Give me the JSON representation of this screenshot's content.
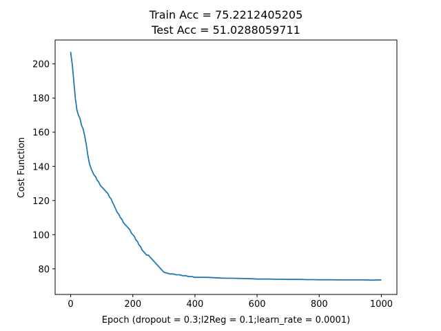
{
  "chart_data": {
    "type": "line",
    "title_lines": [
      "Train Acc = 75.2212405205",
      "Test Acc = 51.0288059711"
    ],
    "xlabel": "Epoch (dropout = 0.3;l2Reg = 0.1;learn_rate = 0.0001)",
    "ylabel": "Cost Function",
    "xlim": [
      -50,
      1050
    ],
    "ylim": [
      65,
      214
    ],
    "xticks": [
      0,
      200,
      400,
      600,
      800,
      1000
    ],
    "yticks": [
      80,
      100,
      120,
      140,
      160,
      180,
      200
    ],
    "grid": false,
    "line_color": "#1f77b4",
    "series": [
      {
        "x": [
          0,
          5,
          10,
          15,
          20,
          25,
          30,
          35,
          40,
          45,
          50,
          55,
          60,
          65,
          70,
          75,
          80,
          85,
          90,
          95,
          100,
          105,
          110,
          115,
          120,
          125,
          130,
          135,
          140,
          145,
          150,
          155,
          160,
          165,
          170,
          175,
          180,
          185,
          190,
          195,
          200,
          205,
          210,
          215,
          220,
          225,
          230,
          235,
          240,
          245,
          250,
          255,
          260,
          265,
          270,
          275,
          280,
          285,
          290,
          295,
          300,
          310,
          320,
          330,
          340,
          350,
          360,
          370,
          380,
          390,
          400,
          420,
          440,
          460,
          480,
          500,
          520,
          540,
          560,
          580,
          600,
          620,
          640,
          660,
          680,
          700,
          720,
          740,
          760,
          780,
          800,
          820,
          840,
          860,
          880,
          900,
          920,
          940,
          960,
          980,
          1000
        ],
        "values": [
          207,
          200,
          190,
          180,
          173,
          170,
          168,
          164,
          162,
          158,
          153,
          147,
          142,
          139,
          137,
          135,
          134,
          132,
          131,
          129,
          128,
          127,
          126,
          125,
          124,
          122,
          121,
          119,
          117,
          115,
          113,
          112,
          110,
          109,
          107,
          106,
          105,
          104,
          103,
          101,
          100,
          99,
          97,
          96,
          94,
          93,
          91,
          90,
          89,
          88,
          88,
          87,
          86,
          85,
          84,
          83,
          82,
          81,
          80,
          79,
          78,
          77.5,
          77,
          77,
          76.5,
          76.5,
          76,
          76,
          75.5,
          75.5,
          75,
          75,
          75,
          74.8,
          74.6,
          74.5,
          74.5,
          74.4,
          74.3,
          74.2,
          74,
          74,
          74,
          73.9,
          73.9,
          73.8,
          73.8,
          73.8,
          73.7,
          73.7,
          73.6,
          73.6,
          73.6,
          73.5,
          73.5,
          73.5,
          73.5,
          73.5,
          73.4,
          73.4,
          73.5
        ]
      }
    ]
  }
}
